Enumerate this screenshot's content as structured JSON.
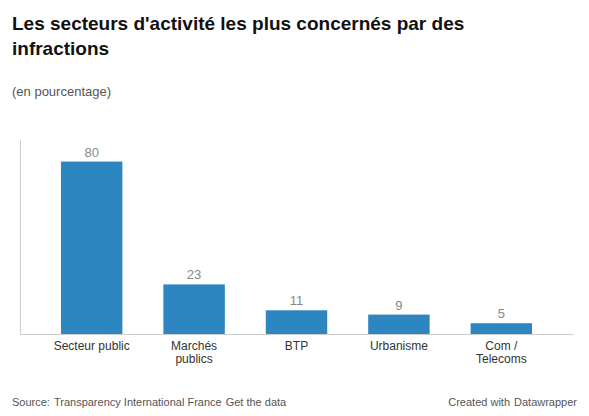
{
  "chart_data": {
    "type": "bar",
    "title": "Les secteurs d'activité les plus concernés par des\ninfractions",
    "subtitle": "(en pourcentage)",
    "categories": [
      "Secteur public",
      "Marchés\npublics",
      "BTP",
      "Urbanisme",
      "Com /\nTelecoms"
    ],
    "values": [
      80,
      23,
      11,
      9,
      5
    ],
    "color": "#2E86C1",
    "ylim": [
      0,
      90
    ],
    "grid": false,
    "data_labels": true,
    "tick_labels": "x",
    "annotations": [
      "Source:",
      "Transparency International France",
      "Get the data",
      "Created with",
      "Datawrapper"
    ]
  }
}
